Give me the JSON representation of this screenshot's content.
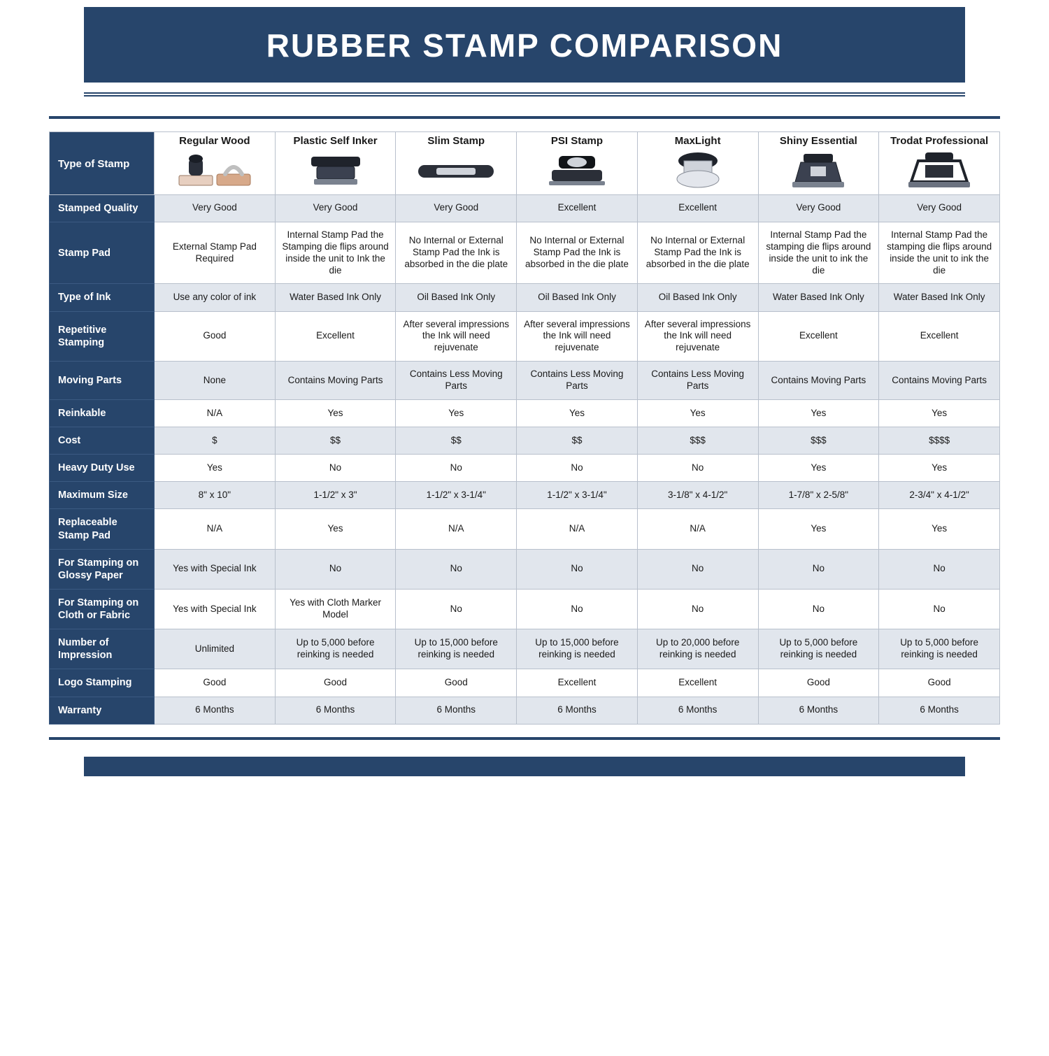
{
  "title": "RUBBER STAMP COMPARISON",
  "colors": {
    "navy": "#27456b",
    "row_alt": "#e1e6ed",
    "row_plain": "#ffffff",
    "border": "#b8c0cc"
  },
  "columns": [
    "Regular Wood",
    "Plastic Self Inker",
    "Slim Stamp",
    "PSI Stamp",
    "MaxLight",
    "Shiny Essential",
    "Trodat Professional"
  ],
  "row_header_first": "Type of Stamp",
  "rows": [
    {
      "label": "Stamped Quality",
      "alt": true,
      "cells": [
        "Very Good",
        "Very Good",
        "Very Good",
        "Excellent",
        "Excellent",
        "Very Good",
        "Very Good"
      ]
    },
    {
      "label": "Stamp Pad",
      "alt": false,
      "cells": [
        "External Stamp Pad Required",
        "Internal Stamp Pad the Stamping die flips around inside the unit to Ink the die",
        "No Internal or External Stamp Pad the Ink is absorbed in the die plate",
        "No Internal or External Stamp Pad the Ink is absorbed in the die plate",
        "No Internal or External Stamp Pad the Ink is absorbed in the die plate",
        "Internal Stamp Pad the stamping die flips around inside the unit to ink the die",
        "Internal Stamp Pad the stamping die flips around inside the unit to ink the die"
      ]
    },
    {
      "label": "Type of Ink",
      "alt": true,
      "cells": [
        "Use any color of ink",
        "Water Based Ink Only",
        "Oil Based Ink Only",
        "Oil Based Ink Only",
        "Oil Based Ink Only",
        "Water Based Ink Only",
        "Water Based Ink Only"
      ]
    },
    {
      "label": "Repetitive Stamping",
      "alt": false,
      "cells": [
        "Good",
        "Excellent",
        "After several impressions the Ink will need rejuvenate",
        "After several impressions the Ink will need rejuvenate",
        "After several impressions the Ink will need rejuvenate",
        "Excellent",
        "Excellent"
      ]
    },
    {
      "label": "Moving Parts",
      "alt": true,
      "cells": [
        "None",
        "Contains Moving Parts",
        "Contains Less Moving Parts",
        "Contains Less Moving Parts",
        "Contains Less Moving Parts",
        "Contains Moving Parts",
        "Contains Moving Parts"
      ]
    },
    {
      "label": "Reinkable",
      "alt": false,
      "cells": [
        "N/A",
        "Yes",
        "Yes",
        "Yes",
        "Yes",
        "Yes",
        "Yes"
      ]
    },
    {
      "label": "Cost",
      "alt": true,
      "cells": [
        "$",
        "$$",
        "$$",
        "$$",
        "$$$",
        "$$$",
        "$$$$"
      ]
    },
    {
      "label": "Heavy Duty Use",
      "alt": false,
      "cells": [
        "Yes",
        "No",
        "No",
        "No",
        "No",
        "Yes",
        "Yes"
      ]
    },
    {
      "label": "Maximum Size",
      "alt": true,
      "cells": [
        "8\" x 10\"",
        "1-1/2\" x 3\"",
        "1-1/2\" x 3-1/4\"",
        "1-1/2\" x 3-1/4\"",
        "3-1/8\" x 4-1/2\"",
        "1-7/8\" x 2-5/8\"",
        "2-3/4\" x 4-1/2\""
      ]
    },
    {
      "label": "Replaceable Stamp Pad",
      "alt": false,
      "cells": [
        "N/A",
        "Yes",
        "N/A",
        "N/A",
        "N/A",
        "Yes",
        "Yes"
      ]
    },
    {
      "label": "For Stamping on Glossy Paper",
      "alt": true,
      "cells": [
        "Yes with Special Ink",
        "No",
        "No",
        "No",
        "No",
        "No",
        "No"
      ]
    },
    {
      "label": "For Stamping on Cloth or Fabric",
      "alt": false,
      "cells": [
        "Yes with Special Ink",
        "Yes with Cloth Marker Model",
        "No",
        "No",
        "No",
        "No",
        "No"
      ]
    },
    {
      "label": "Number of Impression",
      "alt": true,
      "cells": [
        "Unlimited",
        "Up to 5,000 before reinking is needed",
        "Up to 15,000 before reinking is needed",
        "Up to 15,000 before reinking is needed",
        "Up to 20,000 before reinking is needed",
        "Up to 5,000 before reinking is needed",
        "Up to 5,000 before reinking is needed"
      ]
    },
    {
      "label": "Logo Stamping",
      "alt": false,
      "cells": [
        "Good",
        "Good",
        "Good",
        "Excellent",
        "Excellent",
        "Good",
        "Good"
      ]
    },
    {
      "label": "Warranty",
      "alt": true,
      "cells": [
        "6 Months",
        "6 Months",
        "6 Months",
        "6 Months",
        "6 Months",
        "6 Months",
        "6 Months"
      ]
    }
  ]
}
